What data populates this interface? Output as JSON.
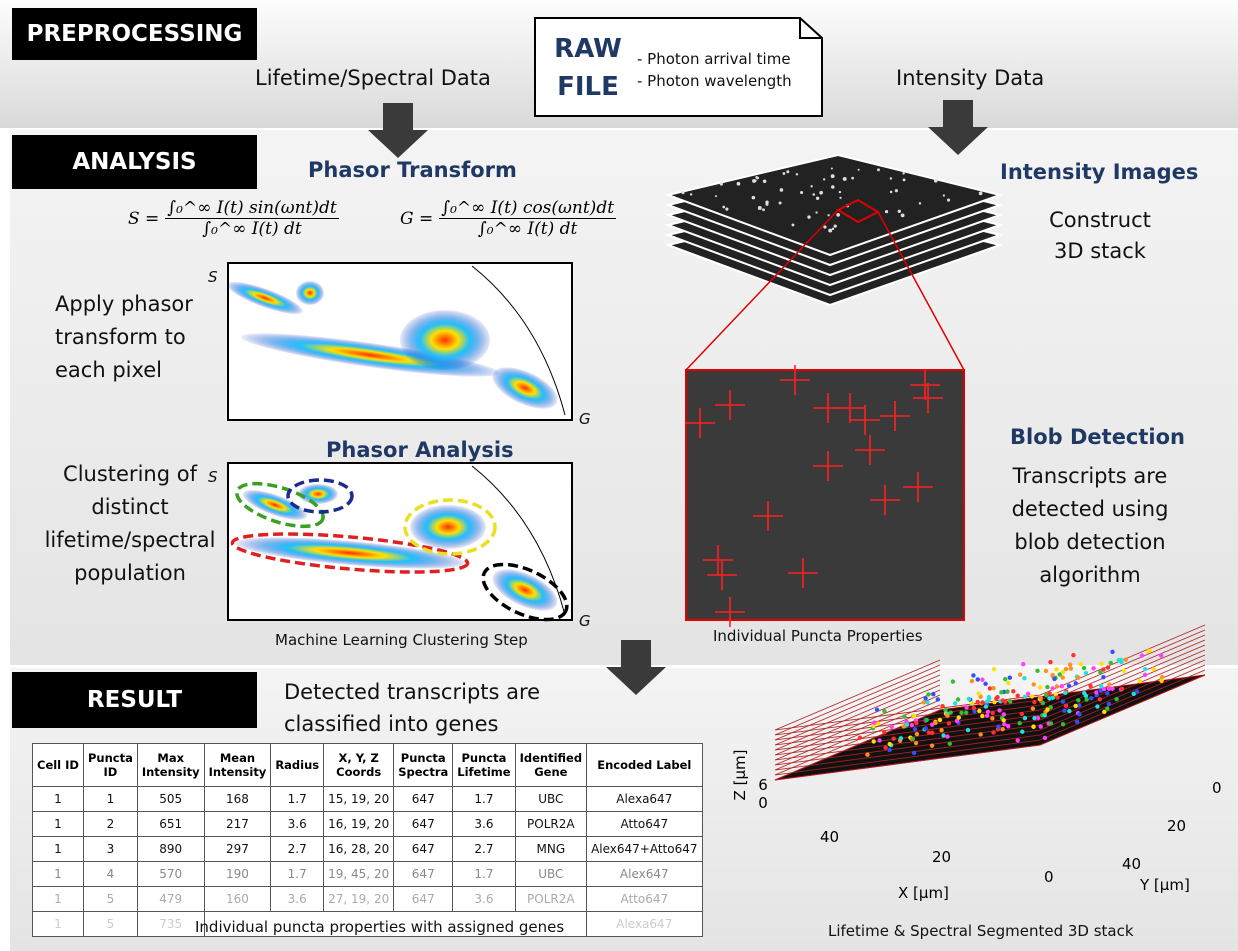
{
  "preprocessing": {
    "label": "PREPROCESSING",
    "left_branch": "Lifetime/Spectral Data",
    "right_branch": "Intensity Data",
    "raw_file": {
      "title": [
        "RAW",
        "FILE"
      ],
      "items": [
        "- Photon arrival time",
        "- Photon wavelength"
      ]
    }
  },
  "analysis": {
    "label": "ANALYSIS",
    "phasor_transform": {
      "title": "Phasor Transform",
      "formula_s": {
        "lhs": "S =",
        "numerator": "∫₀^∞ I(t) sin(ωnt)dt",
        "denominator": "∫₀^∞ I(t) dt"
      },
      "formula_g": {
        "lhs": "G =",
        "numerator": "∫₀^∞ I(t) cos(ωnt)dt",
        "denominator": "∫₀^∞ I(t) dt"
      },
      "description": [
        "Apply phasor",
        "transform to",
        "each pixel"
      ],
      "y_axis": "S",
      "x_axis": "G"
    },
    "phasor_analysis": {
      "title": "Phasor Analysis",
      "description": [
        "Clustering of",
        "distinct",
        "lifetime/spectral",
        "population"
      ],
      "y_axis": "S",
      "x_axis": "G",
      "caption": "Machine Learning Clustering Step"
    },
    "intensity_images": {
      "title": "Intensity Images",
      "description": [
        "Construct",
        "3D stack"
      ]
    },
    "blob_detection": {
      "title": "Blob Detection",
      "description": [
        "Transcripts are",
        "detected using",
        "blob detection",
        "algorithm"
      ],
      "caption": "Individual Puncta Properties"
    }
  },
  "result": {
    "label": "RESULT",
    "description": [
      "Detected transcripts are",
      "classified into genes"
    ],
    "table": {
      "headers": [
        [
          "Cell ID"
        ],
        [
          "Puncta",
          "ID"
        ],
        [
          "Max",
          "Intensity"
        ],
        [
          "Mean",
          "Intensity"
        ],
        [
          "Radius"
        ],
        [
          "X, Y, Z",
          "Coords"
        ],
        [
          "Puncta",
          "Spectra"
        ],
        [
          "Puncta",
          "Lifetime"
        ],
        [
          "Identified",
          "Gene"
        ],
        [
          "Encoded Label"
        ]
      ],
      "rows": [
        [
          "1",
          "1",
          "505",
          "168",
          "1.7",
          "15, 19, 20",
          "647",
          "1.7",
          "UBC",
          "Alexa647"
        ],
        [
          "1",
          "2",
          "651",
          "217",
          "3.6",
          "16, 19, 20",
          "647",
          "3.6",
          "POLR2A",
          "Atto647"
        ],
        [
          "1",
          "3",
          "890",
          "297",
          "2.7",
          "16, 28, 20",
          "647",
          "2.7",
          "MNG",
          "Alex647+Atto647"
        ],
        [
          "1",
          "4",
          "570",
          "190",
          "1.7",
          "19, 45, 20",
          "647",
          "1.7",
          "UBC",
          "Alex647"
        ],
        [
          "1",
          "5",
          "479",
          "160",
          "3.6",
          "27, 19, 20",
          "647",
          "3.6",
          "POLR2A",
          "Atto647"
        ]
      ],
      "partial_row": [
        "1",
        "5",
        "735",
        "Alexa647"
      ],
      "caption": "Individual puncta properties with assigned genes"
    },
    "plot3d": {
      "z_label": "Z [μm]",
      "x_label": "X [μm]",
      "y_label": "Y [μm]",
      "z_ticks": [
        "6",
        "0"
      ],
      "x_ticks": [
        "40",
        "20",
        "0"
      ],
      "y_ticks": [
        "0",
        "20",
        "40"
      ],
      "caption": "Lifetime & Spectral Segmented 3D stack"
    }
  }
}
